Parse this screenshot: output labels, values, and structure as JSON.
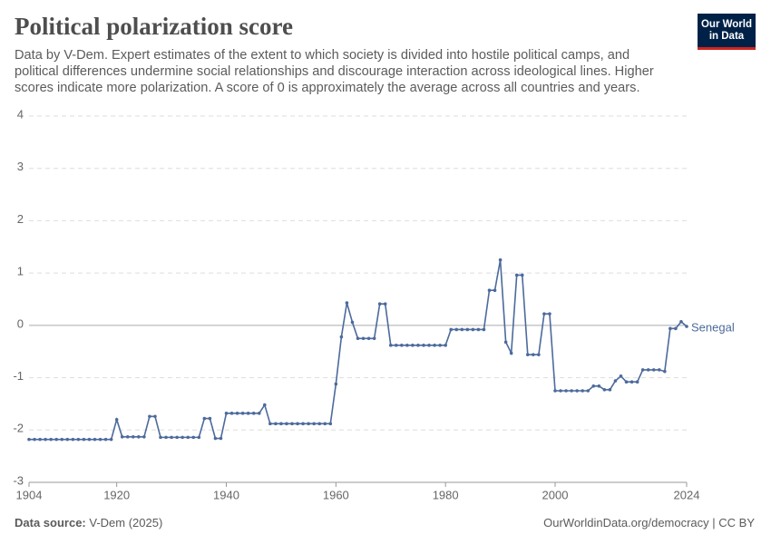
{
  "chart_data": {
    "type": "line",
    "title": "Political polarization score",
    "subtitle": "Data by V-Dem. Expert estimates of the extent to which society is divided into hostile political camps, and political differences undermine social relationships and discourage interaction across ideological lines. Higher scores indicate more polarization. A score of 0 is approximately the average across all countries and years.",
    "logo": "Our World in Data",
    "source_label": "Data source:",
    "source": "V-Dem (2025)",
    "credit": "OurWorldinData.org/democracy | CC BY",
    "x": [
      1904,
      1905,
      1906,
      1907,
      1908,
      1909,
      1910,
      1911,
      1912,
      1913,
      1914,
      1915,
      1916,
      1917,
      1918,
      1919,
      1920,
      1921,
      1922,
      1923,
      1924,
      1925,
      1926,
      1927,
      1928,
      1929,
      1930,
      1931,
      1932,
      1933,
      1934,
      1935,
      1936,
      1937,
      1938,
      1939,
      1940,
      1941,
      1942,
      1943,
      1944,
      1945,
      1946,
      1947,
      1948,
      1949,
      1950,
      1951,
      1952,
      1953,
      1954,
      1955,
      1956,
      1957,
      1958,
      1959,
      1960,
      1961,
      1962,
      1963,
      1964,
      1965,
      1966,
      1967,
      1968,
      1969,
      1970,
      1971,
      1972,
      1973,
      1974,
      1975,
      1976,
      1977,
      1978,
      1979,
      1980,
      1981,
      1982,
      1983,
      1984,
      1985,
      1986,
      1987,
      1988,
      1989,
      1990,
      1991,
      1992,
      1993,
      1994,
      1995,
      1996,
      1997,
      1998,
      1999,
      2000,
      2001,
      2002,
      2003,
      2004,
      2005,
      2006,
      2007,
      2008,
      2009,
      2010,
      2011,
      2012,
      2013,
      2014,
      2015,
      2016,
      2017,
      2018,
      2019,
      2020,
      2021,
      2022,
      2023,
      2024
    ],
    "series": [
      {
        "name": "Senegal",
        "color": "#4c6a9c",
        "values": [
          -2.18,
          -2.18,
          -2.18,
          -2.18,
          -2.18,
          -2.18,
          -2.18,
          -2.18,
          -2.18,
          -2.18,
          -2.18,
          -2.18,
          -2.18,
          -2.18,
          -2.18,
          -2.18,
          -1.8,
          -2.13,
          -2.13,
          -2.13,
          -2.13,
          -2.13,
          -1.74,
          -1.74,
          -2.14,
          -2.14,
          -2.14,
          -2.14,
          -2.14,
          -2.14,
          -2.14,
          -2.14,
          -1.78,
          -1.78,
          -2.16,
          -2.16,
          -1.68,
          -1.68,
          -1.68,
          -1.68,
          -1.68,
          -1.68,
          -1.68,
          -1.52,
          -1.88,
          -1.88,
          -1.88,
          -1.88,
          -1.88,
          -1.88,
          -1.88,
          -1.88,
          -1.88,
          -1.88,
          -1.88,
          -1.88,
          -1.12,
          -0.22,
          0.43,
          0.06,
          -0.25,
          -0.25,
          -0.25,
          -0.25,
          0.41,
          0.41,
          -0.38,
          -0.38,
          -0.38,
          -0.38,
          -0.38,
          -0.38,
          -0.38,
          -0.38,
          -0.38,
          -0.38,
          -0.38,
          -0.08,
          -0.08,
          -0.08,
          -0.08,
          -0.08,
          -0.08,
          -0.08,
          0.67,
          0.67,
          1.25,
          -0.32,
          -0.53,
          0.96,
          0.96,
          -0.56,
          -0.56,
          -0.56,
          0.22,
          0.22,
          -1.25,
          -1.25,
          -1.25,
          -1.25,
          -1.25,
          -1.25,
          -1.25,
          -1.16,
          -1.16,
          -1.23,
          -1.23,
          -1.06,
          -0.97,
          -1.08,
          -1.08,
          -1.08,
          -0.85,
          -0.85,
          -0.85,
          -0.85,
          -0.88,
          -0.06,
          -0.06,
          0.07,
          -0.02
        ]
      }
    ],
    "xlim": [
      1904,
      2024
    ],
    "xticks": [
      1904,
      1920,
      1940,
      1960,
      1980,
      2000,
      2024
    ],
    "ylim": [
      -3,
      4
    ],
    "yticks": [
      -3,
      -2,
      -1,
      0,
      1,
      2,
      3,
      4
    ],
    "grid": true
  }
}
